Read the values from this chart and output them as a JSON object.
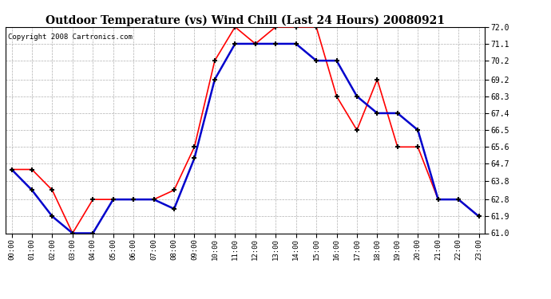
{
  "title": "Outdoor Temperature (vs) Wind Chill (Last 24 Hours) 20080921",
  "copyright": "Copyright 2008 Cartronics.com",
  "hours": [
    "00:00",
    "01:00",
    "02:00",
    "03:00",
    "04:00",
    "05:00",
    "06:00",
    "07:00",
    "08:00",
    "09:00",
    "10:00",
    "11:00",
    "12:00",
    "13:00",
    "14:00",
    "15:00",
    "16:00",
    "17:00",
    "18:00",
    "19:00",
    "20:00",
    "21:00",
    "22:00",
    "23:00"
  ],
  "temp": [
    64.4,
    64.4,
    63.3,
    61.0,
    62.8,
    62.8,
    62.8,
    62.8,
    63.3,
    65.6,
    70.2,
    72.0,
    71.1,
    72.0,
    72.0,
    72.0,
    68.3,
    66.5,
    69.2,
    65.6,
    65.6,
    62.8,
    62.8,
    61.9
  ],
  "windchill": [
    64.4,
    63.3,
    61.9,
    61.0,
    61.0,
    62.8,
    62.8,
    62.8,
    62.3,
    65.0,
    69.2,
    71.1,
    71.1,
    71.1,
    71.1,
    70.2,
    70.2,
    68.3,
    67.4,
    67.4,
    66.5,
    62.8,
    62.8,
    61.9
  ],
  "ylim": [
    61.0,
    72.0
  ],
  "yticks": [
    61.0,
    61.9,
    62.8,
    63.8,
    64.7,
    65.6,
    66.5,
    67.4,
    68.3,
    69.2,
    70.2,
    71.1,
    72.0
  ],
  "temp_color": "#ff0000",
  "windchill_color": "#0000cc",
  "bg_color": "#ffffff",
  "grid_color": "#b0b0b0",
  "title_fontsize": 10,
  "copyright_fontsize": 6.5
}
